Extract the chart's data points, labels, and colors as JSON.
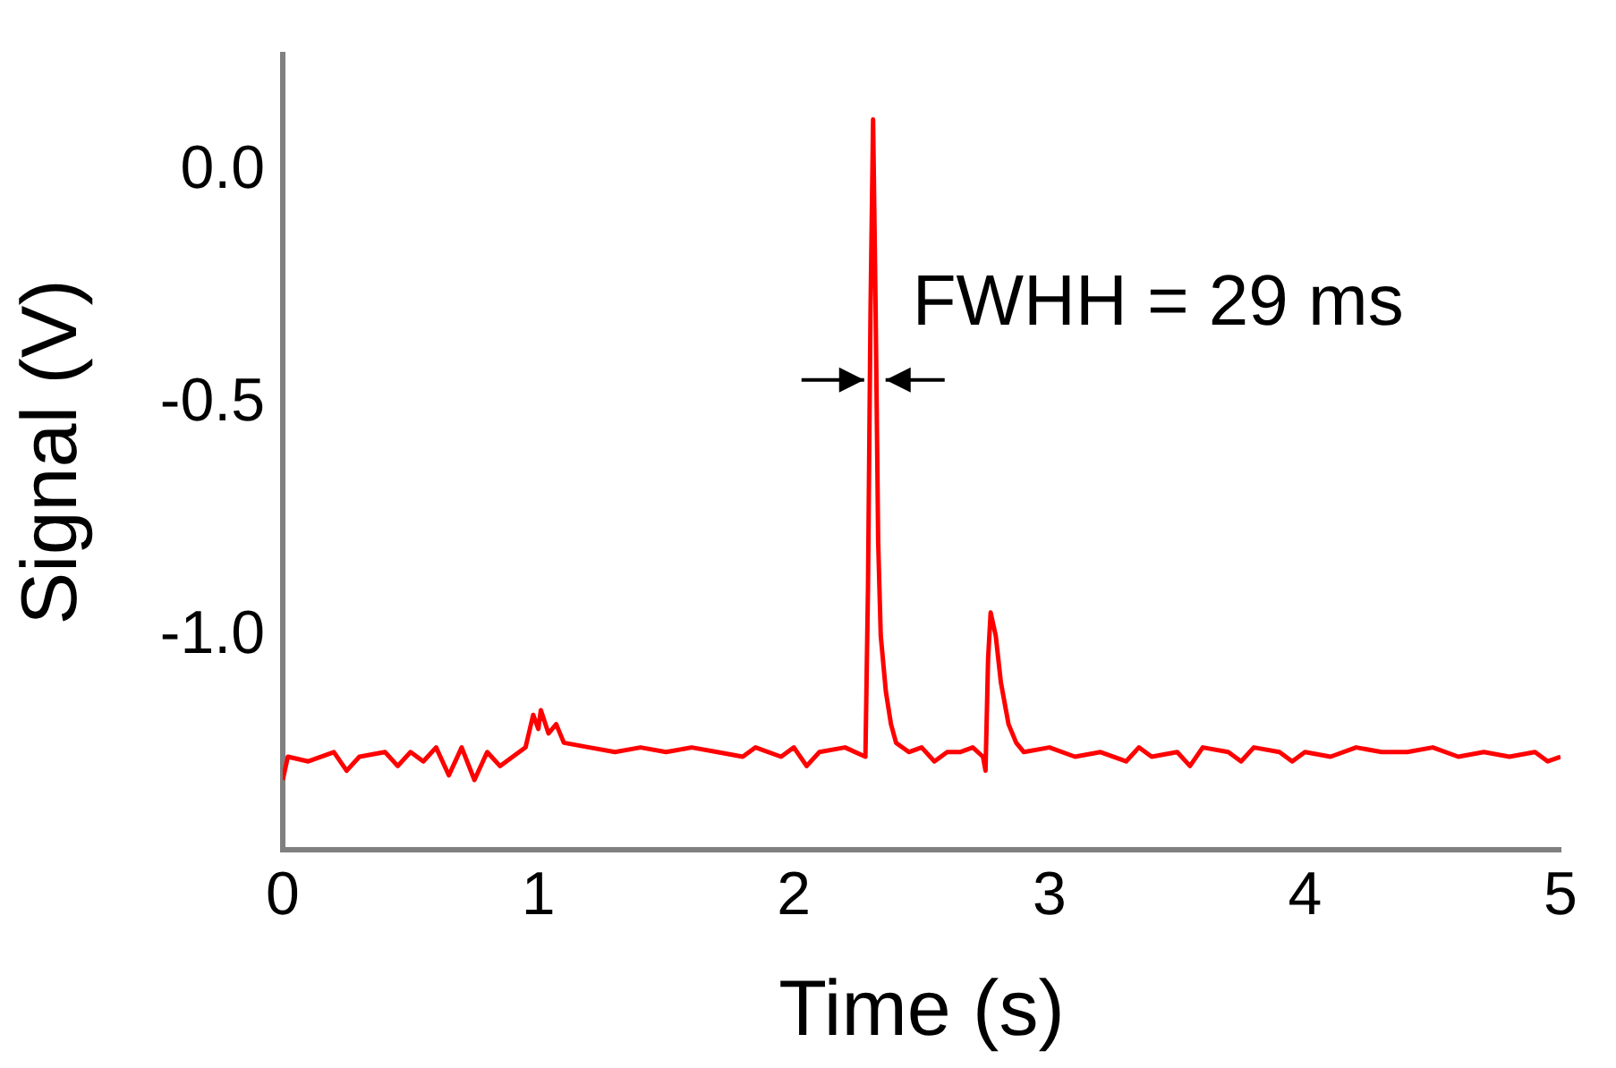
{
  "chart_data": {
    "type": "line",
    "xlabel": "Time (s)",
    "ylabel": "Signal (V)",
    "x": [
      0,
      0.02,
      0.1,
      0.2,
      0.25,
      0.3,
      0.4,
      0.45,
      0.5,
      0.55,
      0.6,
      0.65,
      0.7,
      0.75,
      0.8,
      0.85,
      0.9,
      0.95,
      0.98,
      1.0,
      1.01,
      1.04,
      1.07,
      1.1,
      1.2,
      1.3,
      1.4,
      1.5,
      1.6,
      1.7,
      1.8,
      1.85,
      1.95,
      2.0,
      2.05,
      2.1,
      2.2,
      2.28,
      2.29,
      2.3,
      2.31,
      2.32,
      2.33,
      2.34,
      2.36,
      2.38,
      2.4,
      2.45,
      2.5,
      2.55,
      2.6,
      2.65,
      2.7,
      2.74,
      2.75,
      2.76,
      2.77,
      2.79,
      2.81,
      2.84,
      2.87,
      2.9,
      3.0,
      3.1,
      3.2,
      3.3,
      3.35,
      3.4,
      3.5,
      3.55,
      3.6,
      3.7,
      3.75,
      3.8,
      3.9,
      3.95,
      4.0,
      4.1,
      4.2,
      4.3,
      4.4,
      4.5,
      4.6,
      4.7,
      4.8,
      4.9,
      4.95,
      5.0
    ],
    "series": [
      {
        "color": "#ff0000",
        "values": [
          -1.31,
          -1.26,
          -1.27,
          -1.25,
          -1.29,
          -1.26,
          -1.25,
          -1.28,
          -1.25,
          -1.27,
          -1.24,
          -1.3,
          -1.24,
          -1.31,
          -1.25,
          -1.28,
          -1.26,
          -1.24,
          -1.17,
          -1.2,
          -1.16,
          -1.21,
          -1.19,
          -1.23,
          -1.24,
          -1.25,
          -1.24,
          -1.25,
          -1.24,
          -1.25,
          -1.26,
          -1.24,
          -1.26,
          -1.24,
          -1.28,
          -1.25,
          -1.24,
          -1.26,
          -0.9,
          -0.3,
          0.11,
          -0.3,
          -0.8,
          -1.0,
          -1.12,
          -1.19,
          -1.23,
          -1.25,
          -1.24,
          -1.27,
          -1.25,
          -1.25,
          -1.24,
          -1.26,
          -1.29,
          -1.05,
          -0.95,
          -1.0,
          -1.1,
          -1.19,
          -1.23,
          -1.25,
          -1.24,
          -1.26,
          -1.25,
          -1.27,
          -1.24,
          -1.26,
          -1.25,
          -1.28,
          -1.24,
          -1.25,
          -1.27,
          -1.24,
          -1.25,
          -1.27,
          -1.25,
          -1.26,
          -1.24,
          -1.25,
          -1.25,
          -1.24,
          -1.26,
          -1.25,
          -1.26,
          -1.25,
          -1.27,
          -1.26
        ]
      }
    ],
    "xlim": [
      0,
      5
    ],
    "xticks": [
      0,
      1,
      2,
      3,
      4,
      5
    ],
    "ylim": [
      -1.46,
      0.25
    ],
    "yticks": [
      {
        "value": 0,
        "label": "0.0"
      },
      {
        "value": -0.5,
        "label": "-0.5"
      },
      {
        "value": -1,
        "label": "-1.0"
      }
    ],
    "grid": false,
    "annotations": [
      {
        "text": "FWHH = 29 ms",
        "x": 2.31,
        "y": -0.45
      }
    ]
  }
}
